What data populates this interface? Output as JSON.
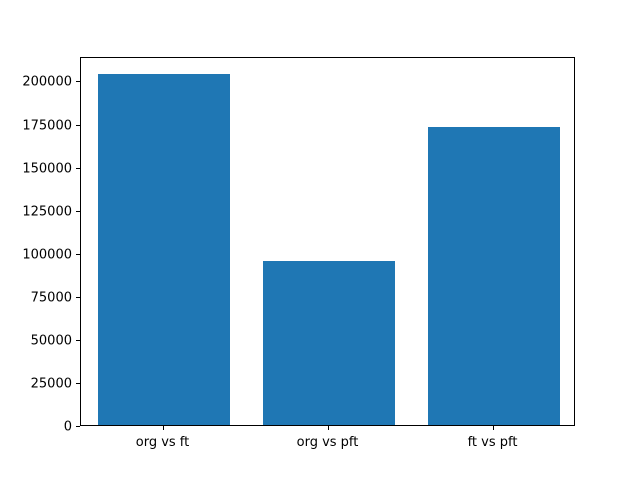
{
  "figure": {
    "background_color": "#ffffff",
    "bar_color": "#1f77b4",
    "axis_color": "#000000"
  },
  "chart_data": {
    "type": "bar",
    "categories": [
      "org vs ft",
      "org vs pft",
      "ft vs pft"
    ],
    "values": [
      204000,
      95000,
      173000
    ],
    "title": "",
    "xlabel": "",
    "ylabel": "",
    "ylim": [
      0,
      214200
    ],
    "yticks": [
      0,
      25000,
      50000,
      75000,
      100000,
      125000,
      150000,
      175000,
      200000
    ],
    "ytick_labels": [
      "0",
      "25000",
      "50000",
      "75000",
      "100000",
      "125000",
      "150000",
      "175000",
      "200000"
    ],
    "bar_width_fraction": 0.8,
    "grid": false,
    "legend_position": "none"
  }
}
